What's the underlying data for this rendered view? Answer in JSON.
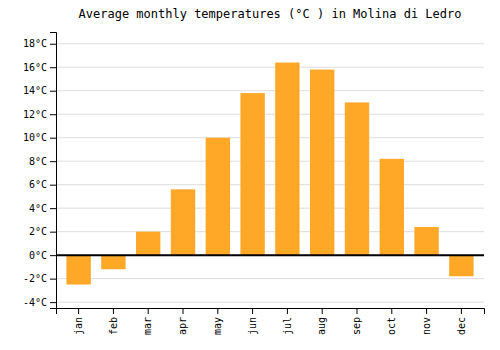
{
  "chart_data": {
    "type": "bar",
    "title": "Average monthly temperatures (°C ) in Molina di Ledro",
    "categories": [
      "jan",
      "feb",
      "mar",
      "apr",
      "may",
      "jun",
      "jul",
      "aug",
      "sep",
      "oct",
      "nov",
      "dec"
    ],
    "values": [
      -2.5,
      -1.2,
      2.0,
      5.6,
      10.0,
      13.8,
      16.4,
      15.8,
      13.0,
      8.2,
      2.4,
      -1.8
    ],
    "color": "#FFA726",
    "ylim": [
      -4.5,
      19
    ],
    "yticks": [
      {
        "value": -4,
        "label": "-4°C"
      },
      {
        "value": -2,
        "label": "-2°C"
      },
      {
        "value": 0,
        "label": "0°C"
      },
      {
        "value": 2,
        "label": "2°C"
      },
      {
        "value": 4,
        "label": "4°C"
      },
      {
        "value": 6,
        "label": "6°C"
      },
      {
        "value": 8,
        "label": "8°C"
      },
      {
        "value": 10,
        "label": "10°C"
      },
      {
        "value": 12,
        "label": "12°C"
      },
      {
        "value": 14,
        "label": "14°C"
      },
      {
        "value": 16,
        "label": "16°C"
      },
      {
        "value": 18,
        "label": "18°C"
      }
    ],
    "grid": true
  }
}
